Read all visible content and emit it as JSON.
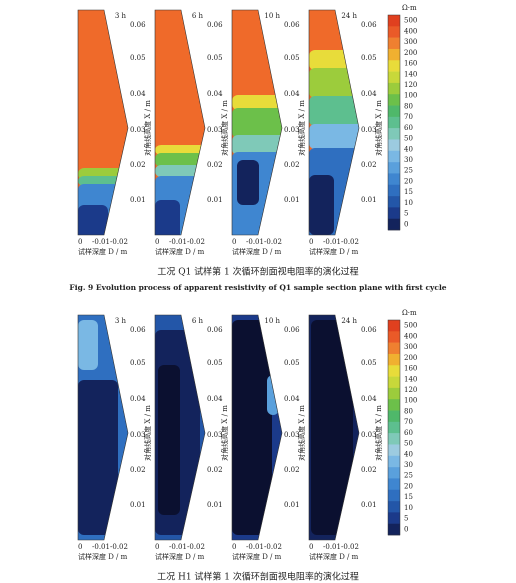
{
  "figures": [
    {
      "panels": [
        {
          "time": "3 h"
        },
        {
          "time": "6 h"
        },
        {
          "time": "10 h"
        },
        {
          "time": "24 h"
        }
      ],
      "y_ticks": [
        "0.06",
        "0.05",
        "0.04",
        "0.03",
        "0.02",
        "0.01"
      ],
      "y_axis_label": "对角线高度 X / m",
      "x_ticks": [
        "0",
        "-0.01",
        "-0.02"
      ],
      "x_axis_label": "试样深度 D / m",
      "colorbar": {
        "unit": "Ω·m",
        "labels": [
          "500",
          "400",
          "300",
          "200",
          "160",
          "140",
          "120",
          "100",
          "80",
          "70",
          "60",
          "50",
          "40",
          "30",
          "25",
          "20",
          "15",
          "10",
          "5",
          "0"
        ]
      },
      "caption_cn": "工况 Q1 试样第 1 次循环剖面视电阻率的演化过程",
      "caption_en": "Fig. 9   Evolution process of apparent resistivity of Q1 sample section plane with first cycle"
    },
    {
      "panels": [
        {
          "time": "3 h"
        },
        {
          "time": "6 h"
        },
        {
          "time": "10 h"
        },
        {
          "time": "24 h"
        }
      ],
      "y_ticks": [
        "0.06",
        "0.05",
        "0.04",
        "0.03",
        "0.02",
        "0.01"
      ],
      "y_axis_label": "对角线高度 X / m",
      "x_ticks": [
        "0",
        "-0.01",
        "-0.02"
      ],
      "x_axis_label": "试样深度 D / m",
      "colorbar": {
        "unit": "Ω·m",
        "labels": [
          "500",
          "400",
          "300",
          "200",
          "160",
          "140",
          "120",
          "100",
          "80",
          "70",
          "60",
          "50",
          "40",
          "30",
          "25",
          "20",
          "15",
          "10",
          "5",
          "0"
        ]
      },
      "caption_cn": "工况 H1 试样第 1 次循环剖面视电阻率的演化过程"
    }
  ]
}
